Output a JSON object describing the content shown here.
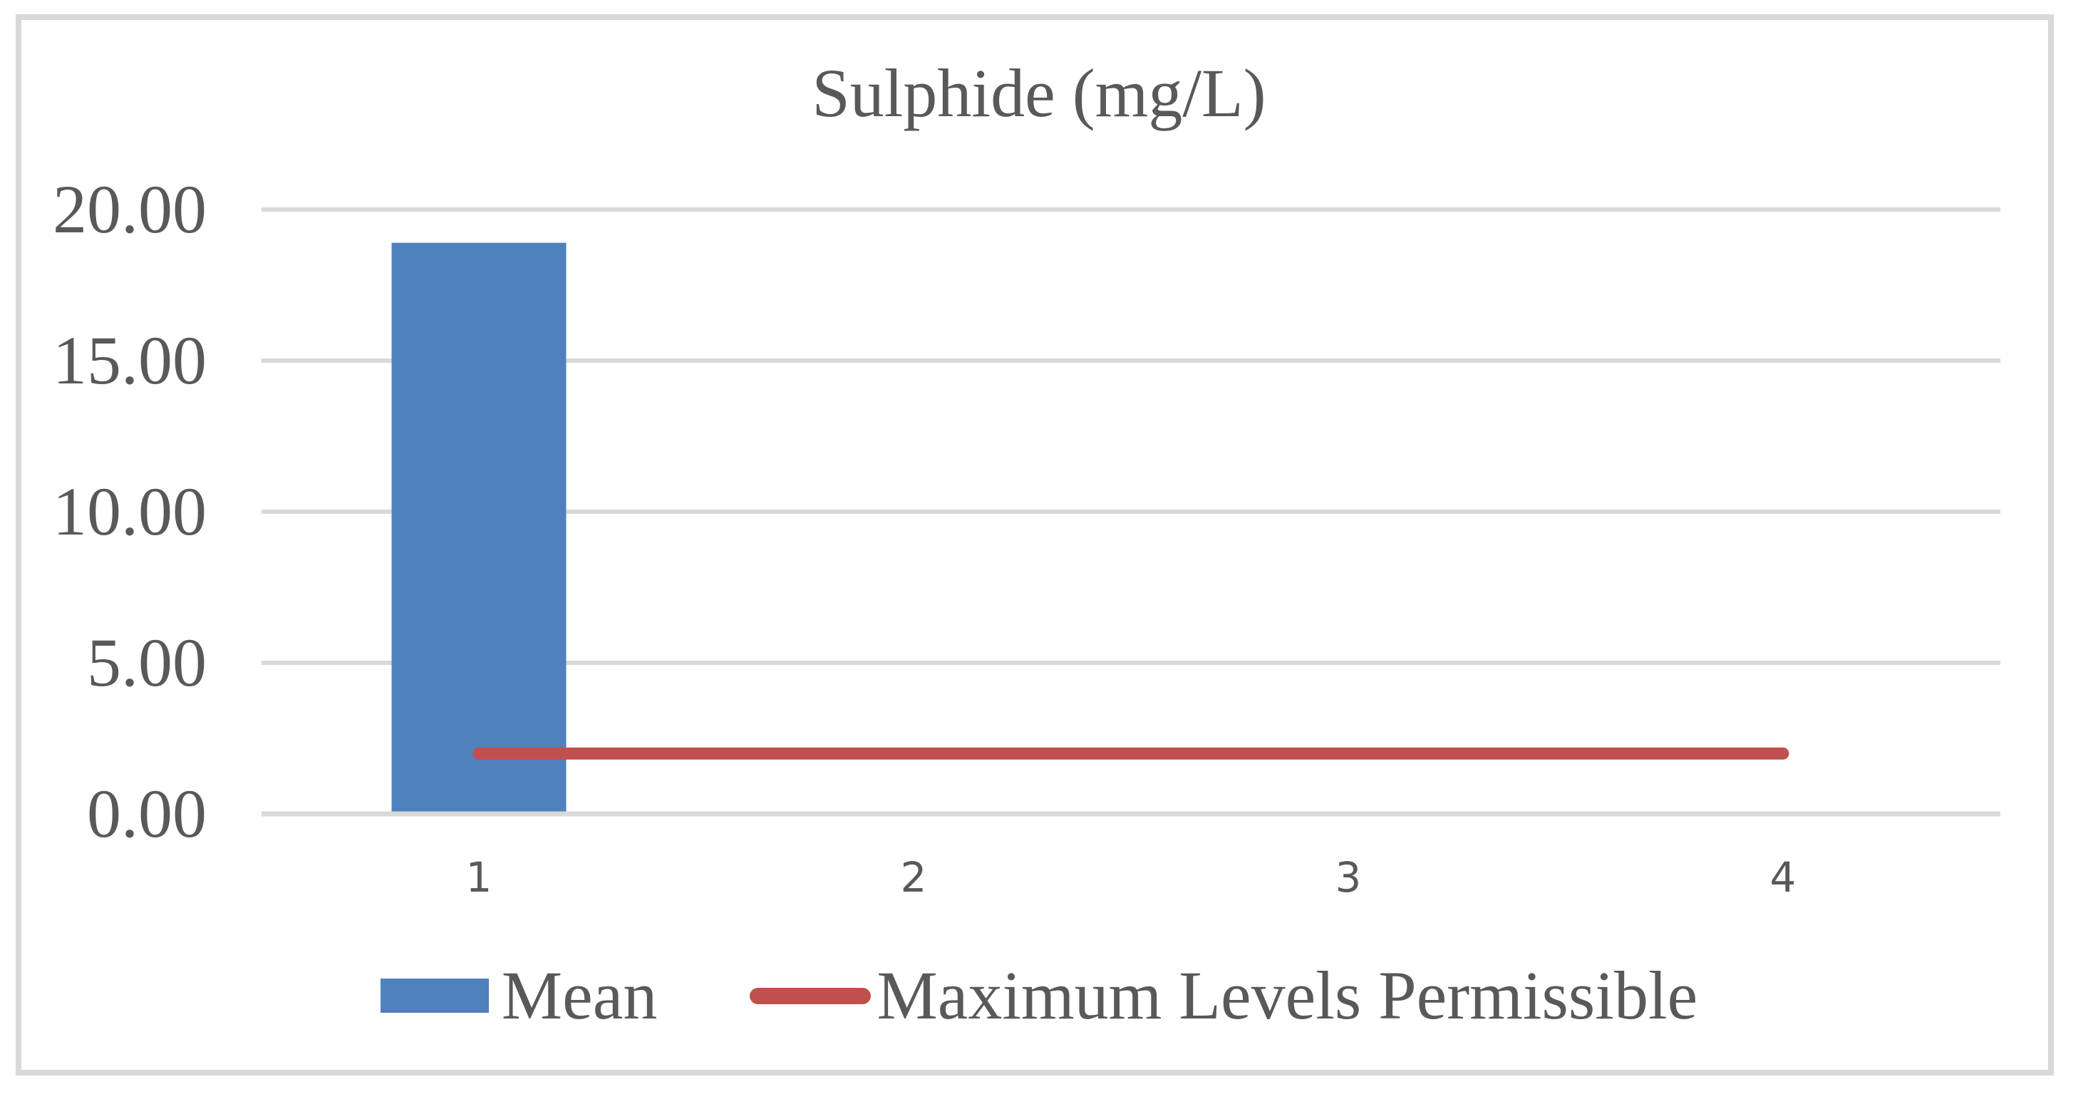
{
  "figure": {
    "title": "Sulphide (mg/L)"
  },
  "chart_data": {
    "type": "bar",
    "title": "Sulphide (mg/L)",
    "categories": [
      "1",
      "2",
      "3",
      "4"
    ],
    "series": [
      {
        "name": "Mean",
        "type": "bar",
        "color": "#4F81BD",
        "values": [
          18.9,
          null,
          null,
          null
        ]
      },
      {
        "name": "Maximum Levels Permissible",
        "type": "line",
        "color": "#C0504D",
        "values": [
          2.0,
          2.0,
          2.0,
          2.0
        ]
      }
    ],
    "xlabel": "",
    "ylabel": "",
    "ylim": [
      0,
      20
    ],
    "ytick_values": [
      0,
      5,
      10,
      15,
      20
    ],
    "ytick_labels": [
      "0.00",
      "5.00",
      "10.00",
      "15.00",
      "20.00"
    ],
    "grid": true,
    "legend_position": "bottom",
    "colors": {
      "text": "#595959",
      "gridline": "#D9D9D9",
      "axis_line": "#D9D9D9",
      "border": "#D9D9D9",
      "background": "#FFFFFF"
    }
  }
}
